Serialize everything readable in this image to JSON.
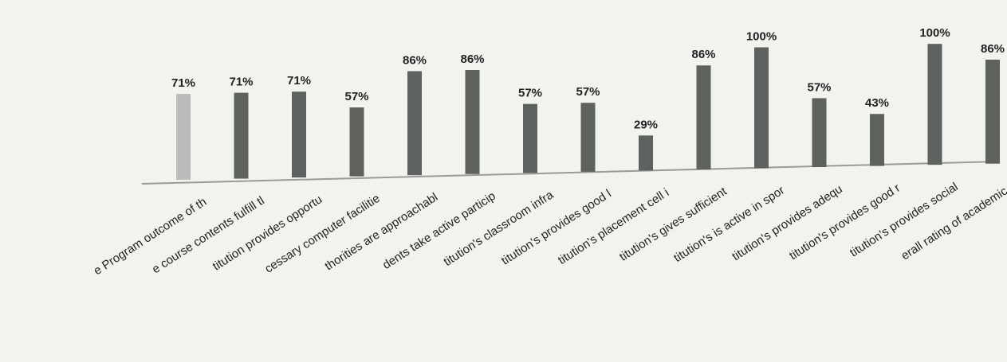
{
  "chart_data": {
    "type": "bar",
    "title": "",
    "xlabel": "",
    "ylabel": "",
    "ylim": [
      0,
      100
    ],
    "grid": false,
    "legend": "none",
    "categories": [
      "e Program outcome of th",
      "e course contents fulfill tl",
      "titution provides opportu",
      "cessary computer facilitie",
      "thorities are approachabl",
      "dents take active particip",
      "titution's classroom infra",
      "titution's provides good l",
      "titution's placement cell i",
      "titution's gives sufficient",
      "titution's is active in spor",
      "titution's provides adequ",
      "titution's provides good r",
      "titution's provides social",
      "erall rating of academic p"
    ],
    "values": [
      71,
      71,
      71,
      57,
      86,
      86,
      57,
      57,
      29,
      86,
      100,
      57,
      43,
      100,
      86
    ],
    "data_labels": [
      "71%",
      "71%",
      "71%",
      "57%",
      "86%",
      "86%",
      "57%",
      "57%",
      "29%",
      "86%",
      "100%",
      "57%",
      "43%",
      "100%",
      "86%"
    ],
    "colors": {
      "first_bar": "#b9bcb8",
      "bar": "#5e625e",
      "axis": "#9a9a98"
    }
  }
}
